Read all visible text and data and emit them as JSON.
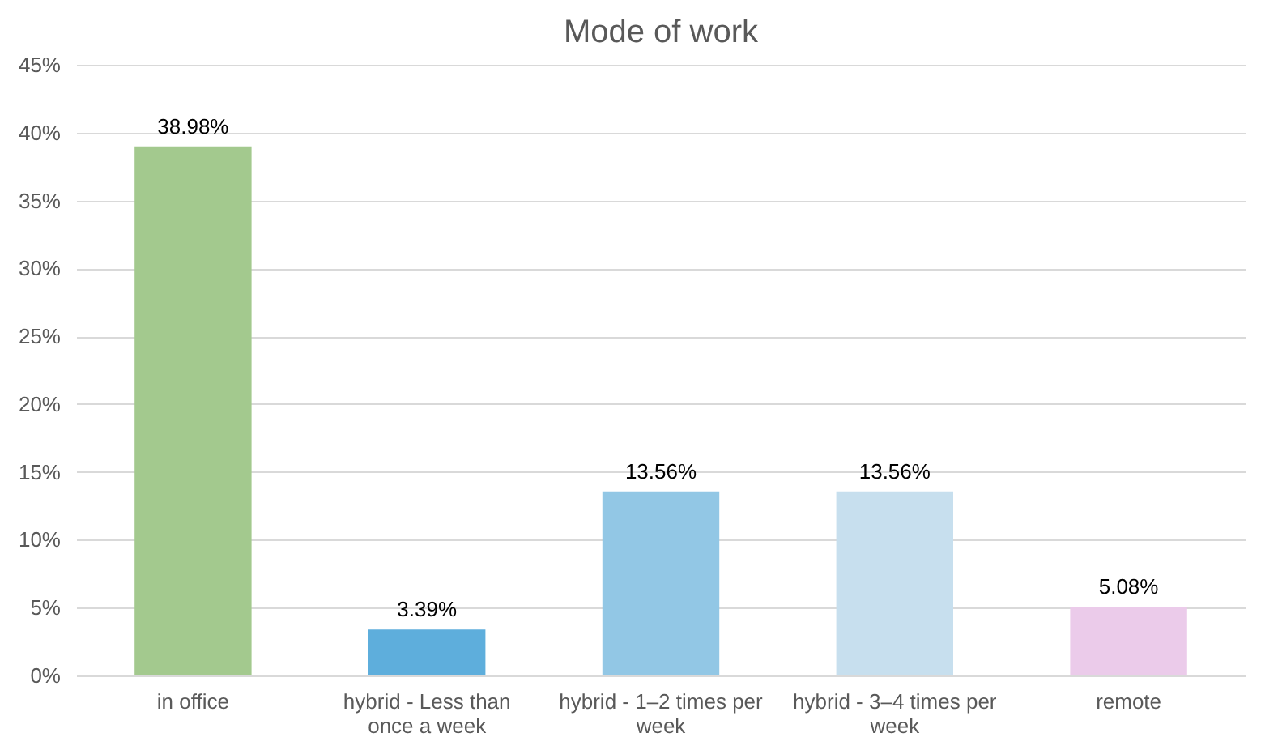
{
  "chart_data": {
    "type": "bar",
    "title": "Mode of work",
    "categories": [
      "in office",
      "hybrid - Less than once a week",
      "hybrid - 1–2 times per week",
      "hybrid - 3–4 times per week",
      "remote"
    ],
    "values": [
      38.98,
      3.39,
      13.56,
      13.56,
      5.08
    ],
    "colors": [
      "#a3c98e",
      "#5eaedc",
      "#92c7e5",
      "#c7dfee",
      "#ebcbea"
    ],
    "value_labels": [
      "38.98%",
      "3.39%",
      "13.56%",
      "13.56%",
      "5.08%"
    ],
    "ylim": [
      0,
      45
    ],
    "yticks": [
      {
        "value": 0,
        "label": "0%"
      },
      {
        "value": 5,
        "label": "5%"
      },
      {
        "value": 10,
        "label": "10%"
      },
      {
        "value": 15,
        "label": "15%"
      },
      {
        "value": 20,
        "label": "20%"
      },
      {
        "value": 25,
        "label": "25%"
      },
      {
        "value": 30,
        "label": "30%"
      },
      {
        "value": 35,
        "label": "35%"
      },
      {
        "value": 40,
        "label": "40%"
      },
      {
        "value": 45,
        "label": "45%"
      }
    ],
    "grid": "y"
  }
}
